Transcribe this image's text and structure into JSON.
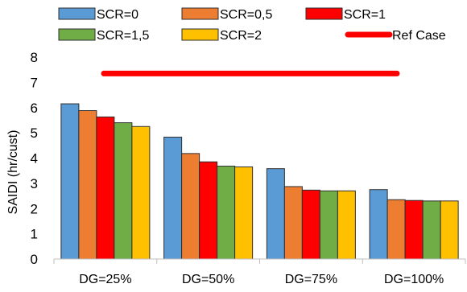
{
  "chart_data": {
    "type": "bar",
    "categories": [
      "DG=25%",
      "DG=50%",
      "DG=75%",
      "DG=100%"
    ],
    "series": [
      {
        "name": "SCR=0",
        "color": "#5b9bd5",
        "values": [
          6.15,
          4.83,
          3.58,
          2.75
        ]
      },
      {
        "name": "SCR=0,5",
        "color": "#ed7d31",
        "values": [
          5.88,
          4.18,
          2.87,
          2.35
        ]
      },
      {
        "name": "SCR=1",
        "color": "#ff0000",
        "values": [
          5.63,
          3.85,
          2.73,
          2.32
        ]
      },
      {
        "name": "SCR=1,5",
        "color": "#70ad47",
        "values": [
          5.4,
          3.68,
          2.7,
          2.3
        ]
      },
      {
        "name": "SCR=2",
        "color": "#ffc000",
        "values": [
          5.25,
          3.65,
          2.7,
          2.3
        ]
      }
    ],
    "reference": {
      "name": "Ref Case",
      "color": "#ff0000",
      "value": 7.35
    },
    "ylabel": "SAIDI (hr/cust)",
    "xlabel": "",
    "ylim": [
      0,
      8
    ],
    "yticks": [
      0,
      1,
      2,
      3,
      4,
      5,
      6,
      7,
      8
    ],
    "grid": false,
    "legend_position": "top"
  }
}
